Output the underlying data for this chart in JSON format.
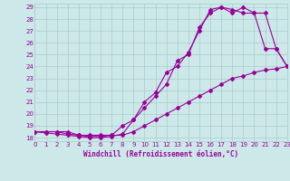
{
  "xlabel": "Windchill (Refroidissement éolien,°C)",
  "bg_color": "#cce8e8",
  "line_color": "#990099",
  "grid_color": "#aacccc",
  "xlim": [
    0,
    23
  ],
  "ylim": [
    18,
    29
  ],
  "xticks": [
    0,
    1,
    2,
    3,
    4,
    5,
    6,
    7,
    8,
    9,
    10,
    11,
    12,
    13,
    14,
    15,
    16,
    17,
    18,
    19,
    20,
    21,
    22,
    23
  ],
  "yticks": [
    18,
    19,
    20,
    21,
    22,
    23,
    24,
    25,
    26,
    27,
    28,
    29
  ],
  "curve1_x": [
    0,
    1,
    2,
    3,
    4,
    5,
    6,
    7,
    8,
    9,
    10,
    11,
    12,
    13,
    14,
    15,
    16,
    17,
    18,
    19,
    20,
    21,
    22,
    23
  ],
  "curve1_y": [
    18.5,
    18.5,
    18.5,
    18.5,
    18.2,
    18.2,
    18.2,
    18.2,
    18.2,
    18.5,
    19.0,
    19.5,
    20.0,
    20.5,
    21.0,
    21.5,
    22.0,
    22.5,
    23.0,
    23.2,
    23.5,
    23.7,
    23.8,
    24.0
  ],
  "curve2_x": [
    0,
    1,
    2,
    3,
    4,
    5,
    6,
    7,
    8,
    9,
    10,
    11,
    12,
    13,
    14,
    15,
    16,
    17,
    18,
    19,
    20,
    21,
    22,
    23
  ],
  "curve2_y": [
    18.5,
    18.5,
    18.5,
    18.3,
    18.2,
    18.1,
    18.1,
    18.2,
    19.0,
    19.5,
    20.5,
    21.5,
    22.5,
    24.5,
    25.0,
    27.3,
    28.5,
    29.0,
    28.8,
    28.5,
    28.5,
    28.5,
    25.5,
    24.0
  ],
  "curve3_x": [
    0,
    1,
    2,
    3,
    4,
    5,
    6,
    7,
    8,
    9,
    10,
    11,
    12,
    13,
    14,
    15,
    16,
    17,
    18,
    19,
    20,
    21,
    22,
    23
  ],
  "curve3_y": [
    18.5,
    18.4,
    18.3,
    18.2,
    18.1,
    18.0,
    18.0,
    18.1,
    18.3,
    19.5,
    21.0,
    21.8,
    23.5,
    24.0,
    25.2,
    27.0,
    28.8,
    29.0,
    28.5,
    29.0,
    28.5,
    25.5,
    25.5,
    24.0
  ]
}
